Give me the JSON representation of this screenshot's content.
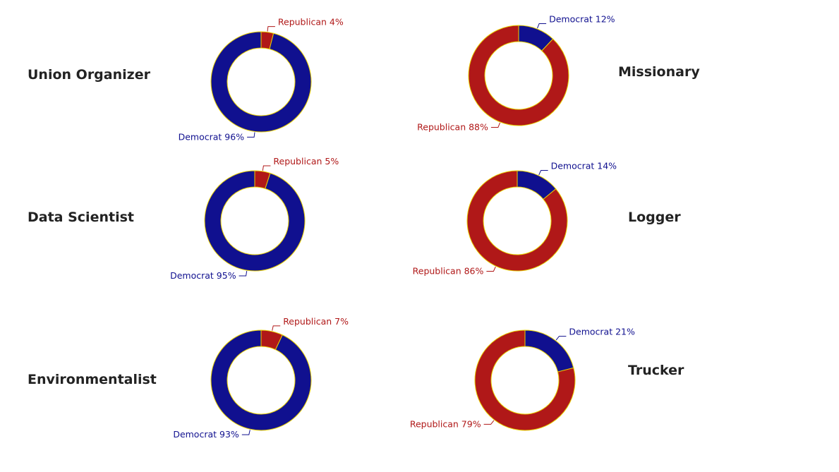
{
  "colors": {
    "democrat": "#10108f",
    "republican": "#b01818",
    "slice_stroke": "#e8d000",
    "title_text": "#222222"
  },
  "chart_data": [
    {
      "type": "pie",
      "variant": "donut",
      "title": "Union Organizer",
      "categories": [
        "Republican",
        "Democrat"
      ],
      "values": [
        4,
        96
      ],
      "labels": [
        "Republican 4%",
        "Democrat 96%"
      ]
    },
    {
      "type": "pie",
      "variant": "donut",
      "title": "Missionary",
      "categories": [
        "Democrat",
        "Republican"
      ],
      "values": [
        12,
        88
      ],
      "labels": [
        "Democrat 12%",
        "Republican 88%"
      ]
    },
    {
      "type": "pie",
      "variant": "donut",
      "title": "Data Scientist",
      "categories": [
        "Republican",
        "Democrat"
      ],
      "values": [
        5,
        95
      ],
      "labels": [
        "Republican 5%",
        "Democrat 95%"
      ]
    },
    {
      "type": "pie",
      "variant": "donut",
      "title": "Logger",
      "categories": [
        "Democrat",
        "Republican"
      ],
      "values": [
        14,
        86
      ],
      "labels": [
        "Democrat 14%",
        "Republican 86%"
      ]
    },
    {
      "type": "pie",
      "variant": "donut",
      "title": "Environmentalist",
      "categories": [
        "Republican",
        "Democrat"
      ],
      "values": [
        7,
        93
      ],
      "labels": [
        "Republican 7%",
        "Democrat 93%"
      ]
    },
    {
      "type": "pie",
      "variant": "donut",
      "title": "Trucker",
      "categories": [
        "Democrat",
        "Republican"
      ],
      "values": [
        21,
        79
      ],
      "labels": [
        "Democrat 21%",
        "Republican 79%"
      ]
    }
  ]
}
